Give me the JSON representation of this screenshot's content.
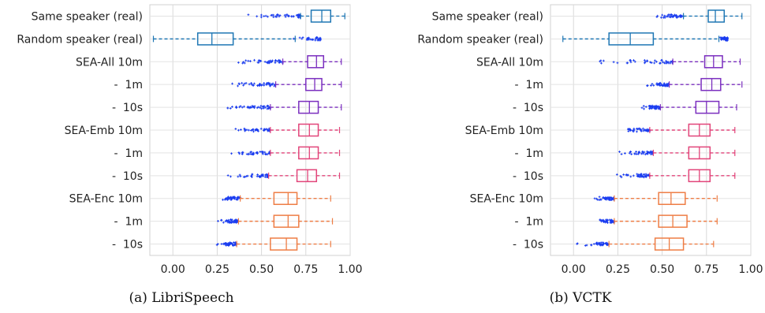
{
  "chart_data": [
    {
      "type": "boxplot",
      "orientation": "horizontal",
      "caption": "(a) LibriSpeech",
      "categories": [
        "Same speaker (real)",
        "Random speaker (real)",
        "SEA-All 10m",
        "-  1m",
        "-  10s",
        "SEA-Emb 10m",
        "-  1m",
        "-  10s",
        "SEA-Enc 10m",
        "-  1m",
        "-  10s"
      ],
      "xlim": [
        -0.13,
        1.0
      ],
      "xticks": [
        0.0,
        0.25,
        0.5,
        0.75,
        1.0
      ],
      "xtick_labels": [
        "0.00",
        "0.25",
        "0.50",
        "0.75",
        "1.00"
      ],
      "grid": true,
      "boxes": [
        {
          "whislo": 0.72,
          "q1": 0.78,
          "med": 0.84,
          "q3": 0.89,
          "whishi": 0.97,
          "flier_min": 0.38,
          "color": "#1f77b4"
        },
        {
          "whislo": -0.11,
          "q1": 0.14,
          "med": 0.22,
          "q3": 0.34,
          "whishi": 0.69,
          "flier_min": 0.65,
          "flier_max": 0.84,
          "color": "#1f77b4"
        },
        {
          "whislo": 0.62,
          "q1": 0.76,
          "med": 0.81,
          "q3": 0.85,
          "whishi": 0.95,
          "flier_min": 0.31,
          "color": "#7b2fbf"
        },
        {
          "whislo": 0.58,
          "q1": 0.75,
          "med": 0.8,
          "q3": 0.84,
          "whishi": 0.95,
          "flier_min": 0.31,
          "color": "#7b2fbf"
        },
        {
          "whislo": 0.55,
          "q1": 0.71,
          "med": 0.77,
          "q3": 0.82,
          "whishi": 0.95,
          "flier_min": 0.24,
          "color": "#7b2fbf"
        },
        {
          "whislo": 0.55,
          "q1": 0.71,
          "med": 0.77,
          "q3": 0.82,
          "whishi": 0.94,
          "flier_min": 0.34,
          "color": "#e2457a"
        },
        {
          "whislo": 0.55,
          "q1": 0.71,
          "med": 0.77,
          "q3": 0.82,
          "whishi": 0.94,
          "flier_min": 0.31,
          "color": "#e2457a"
        },
        {
          "whislo": 0.54,
          "q1": 0.7,
          "med": 0.76,
          "q3": 0.81,
          "whishi": 0.94,
          "flier_min": 0.29,
          "color": "#e2457a"
        },
        {
          "whislo": 0.38,
          "q1": 0.57,
          "med": 0.65,
          "q3": 0.7,
          "whishi": 0.89,
          "flier_min": 0.24,
          "color": "#ee7d45"
        },
        {
          "whislo": 0.37,
          "q1": 0.57,
          "med": 0.65,
          "q3": 0.71,
          "whishi": 0.9,
          "flier_min": 0.24,
          "color": "#ee7d45"
        },
        {
          "whislo": 0.36,
          "q1": 0.55,
          "med": 0.64,
          "q3": 0.7,
          "whishi": 0.89,
          "flier_min": 0.24,
          "color": "#ee7d45"
        }
      ]
    },
    {
      "type": "boxplot",
      "orientation": "horizontal",
      "caption": "(b) VCTK",
      "categories": [
        "Same speaker (real)",
        "Random speaker (real)",
        "SEA-All 10m",
        "-  1m",
        "-  10s",
        "SEA-Emb 10m",
        "-  1m",
        "-  10s",
        "SEA-Enc 10m",
        "-  1m",
        "-  10s"
      ],
      "xlim": [
        -0.13,
        1.0
      ],
      "xticks": [
        0.0,
        0.25,
        0.5,
        0.75,
        1.0
      ],
      "xtick_labels": [
        "0.00",
        "0.25",
        "0.50",
        "0.75",
        "1.00"
      ],
      "grid": true,
      "boxes": [
        {
          "whislo": 0.62,
          "q1": 0.76,
          "med": 0.8,
          "q3": 0.85,
          "whishi": 0.95,
          "flier_min": 0.43,
          "color": "#1f77b4"
        },
        {
          "whislo": -0.06,
          "q1": 0.2,
          "med": 0.32,
          "q3": 0.45,
          "whishi": 0.82,
          "flier_min": 0.8,
          "flier_max": 0.87,
          "color": "#1f77b4"
        },
        {
          "whislo": 0.56,
          "q1": 0.74,
          "med": 0.79,
          "q3": 0.84,
          "whishi": 0.94,
          "flier_min": 0.07,
          "color": "#7b2fbf"
        },
        {
          "whislo": 0.54,
          "q1": 0.72,
          "med": 0.78,
          "q3": 0.83,
          "whishi": 0.95,
          "flier_min": 0.39,
          "color": "#7b2fbf"
        },
        {
          "whislo": 0.49,
          "q1": 0.69,
          "med": 0.75,
          "q3": 0.82,
          "whishi": 0.92,
          "flier_min": 0.36,
          "color": "#7b2fbf"
        },
        {
          "whislo": 0.43,
          "q1": 0.65,
          "med": 0.71,
          "q3": 0.77,
          "whishi": 0.91,
          "flier_min": 0.27,
          "color": "#e2457a"
        },
        {
          "whislo": 0.45,
          "q1": 0.65,
          "med": 0.71,
          "q3": 0.77,
          "whishi": 0.91,
          "flier_min": 0.23,
          "color": "#e2457a"
        },
        {
          "whislo": 0.43,
          "q1": 0.65,
          "med": 0.71,
          "q3": 0.77,
          "whishi": 0.91,
          "flier_min": 0.22,
          "color": "#e2457a"
        },
        {
          "whislo": 0.23,
          "q1": 0.48,
          "med": 0.55,
          "q3": 0.63,
          "whishi": 0.81,
          "flier_min": 0.11,
          "color": "#ee7d45"
        },
        {
          "whislo": 0.23,
          "q1": 0.48,
          "med": 0.56,
          "q3": 0.64,
          "whishi": 0.81,
          "flier_min": 0.13,
          "color": "#ee7d45"
        },
        {
          "whislo": 0.2,
          "q1": 0.46,
          "med": 0.54,
          "q3": 0.62,
          "whishi": 0.79,
          "flier_min": 0.0,
          "color": "#ee7d45"
        }
      ]
    }
  ]
}
